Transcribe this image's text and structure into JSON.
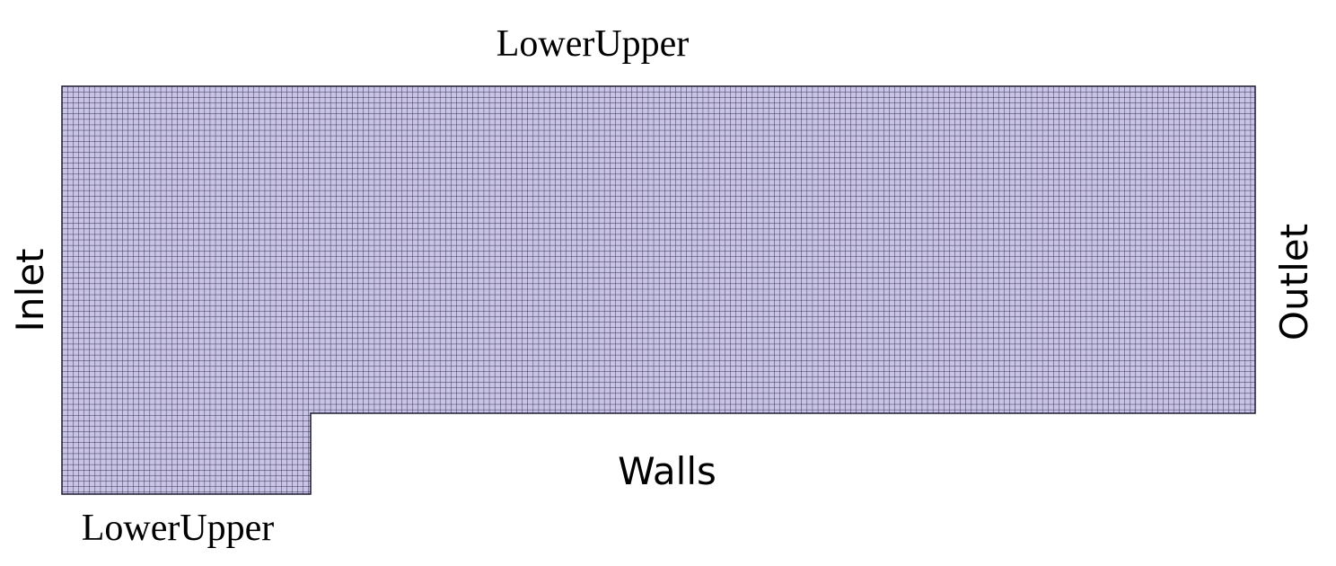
{
  "labels": {
    "top": "LowerUpper",
    "bottom_left": "LowerUpper",
    "left": "Inlet",
    "right": "Outlet",
    "bottom": "Walls"
  },
  "colors": {
    "mesh_fill": "#c9c4e6",
    "mesh_line": "#2a2a4a",
    "outline": "#1a1a2e"
  }
}
